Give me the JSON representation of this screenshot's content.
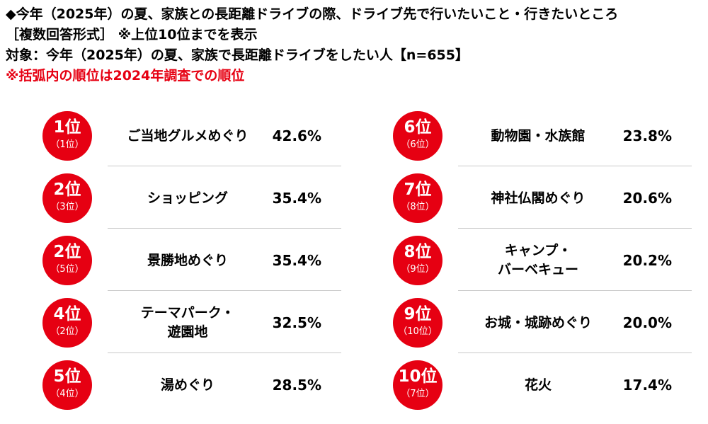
{
  "header": {
    "title": "◆今年（2025年）の夏、家族との長距離ドライブの際、ドライブ先で行いたいこと・行きたいところ",
    "subtitle": "［複数回答形式］ ※上位10位までを表示",
    "target": "対象：今年（2025年）の夏、家族で長距離ドライブをしたい人【n=655】",
    "note": "※括弧内の順位は2024年調査での順位"
  },
  "chart_data": {
    "type": "table",
    "title": "◆今年（2025年）の夏、家族との長距離ドライブの際、ドライブ先で行いたいこと・行きたいところ",
    "columns": [
      [
        {
          "rank": "1位",
          "prev": "（1位）",
          "lines": [
            "ご当地グルメめぐり"
          ],
          "value_label": "42.6%",
          "value": 42.6
        },
        {
          "rank": "2位",
          "prev": "（3位）",
          "lines": [
            "ショッピング"
          ],
          "value_label": "35.4%",
          "value": 35.4
        },
        {
          "rank": "2位",
          "prev": "（5位）",
          "lines": [
            "景勝地めぐり"
          ],
          "value_label": "35.4%",
          "value": 35.4
        },
        {
          "rank": "4位",
          "prev": "（2位）",
          "lines": [
            "テーマパーク・",
            "遊園地"
          ],
          "value_label": "32.5%",
          "value": 32.5
        },
        {
          "rank": "5位",
          "prev": "（4位）",
          "lines": [
            "湯めぐり"
          ],
          "value_label": "28.5%",
          "value": 28.5
        }
      ],
      [
        {
          "rank": "6位",
          "prev": "（6位）",
          "lines": [
            "動物園・水族館"
          ],
          "value_label": "23.8%",
          "value": 23.8
        },
        {
          "rank": "7位",
          "prev": "（8位）",
          "lines": [
            "神社仏閣めぐり"
          ],
          "value_label": "20.6%",
          "value": 20.6
        },
        {
          "rank": "8位",
          "prev": "（9位）",
          "lines": [
            "キャンプ・",
            "バーベキュー"
          ],
          "value_label": "20.2%",
          "value": 20.2
        },
        {
          "rank": "9位",
          "prev": "（10位）",
          "lines": [
            "お城・城跡めぐり"
          ],
          "value_label": "20.0%",
          "value": 20.0
        },
        {
          "rank": "10位",
          "prev": "（7位）",
          "lines": [
            "花火"
          ],
          "value_label": "17.4%",
          "value": 17.4
        }
      ]
    ]
  },
  "colors": {
    "accent": "#e60012",
    "divider": "#c8c8c8"
  }
}
